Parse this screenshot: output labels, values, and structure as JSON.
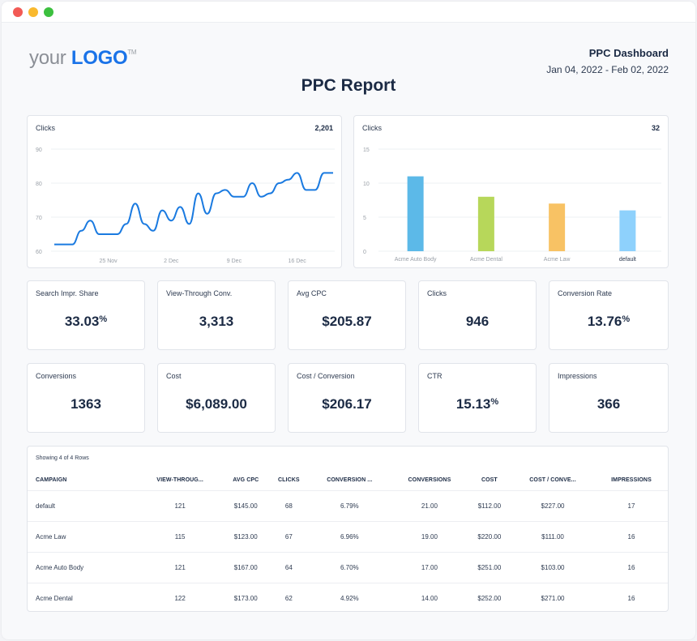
{
  "window": {
    "controls": [
      "close",
      "minimize",
      "maximize"
    ]
  },
  "logo": {
    "prefix": "your",
    "brand": "LOGO",
    "tm": "TM"
  },
  "header": {
    "dashboard_name": "PPC Dashboard",
    "date_range": "Jan 04, 2022 - Feb 02, 2022",
    "report_title": "PPC Report"
  },
  "line_card": {
    "title": "Clicks",
    "total": "2,201"
  },
  "bar_card": {
    "title": "Clicks",
    "total": "32"
  },
  "colors": {
    "line": "#1a7ae0",
    "bars": [
      "#5cb9e8",
      "#b7d75a",
      "#f8c264",
      "#8ed1fc"
    ],
    "grid": "#eef0f3",
    "axis_text": "#9aa0a8"
  },
  "chart_data": [
    {
      "type": "line",
      "title": "Clicks",
      "total": "2,201",
      "xlabel": "",
      "ylabel": "",
      "ylim": [
        60,
        90
      ],
      "yticks": [
        60,
        70,
        80,
        90
      ],
      "xtick_labels": [
        "25 Nov",
        "2 Dec",
        "9 Dec",
        "16 Dec"
      ],
      "xtick_index": [
        6,
        13,
        20,
        27
      ],
      "grid": true,
      "series": [
        {
          "name": "Clicks",
          "values": [
            62,
            62,
            62,
            66,
            69,
            65,
            65,
            65,
            68,
            74,
            68,
            66,
            72,
            69,
            73,
            68,
            77,
            71,
            77,
            78,
            76,
            76,
            80,
            76,
            77,
            80,
            81,
            83,
            78,
            78,
            83,
            83
          ]
        }
      ]
    },
    {
      "type": "bar",
      "title": "Clicks",
      "total": "32",
      "categories": [
        "Acme Auto Body",
        "Acme Dental",
        "Acme Law",
        "default"
      ],
      "values": [
        11,
        8,
        7,
        6
      ],
      "ylim": [
        0,
        15
      ],
      "yticks": [
        0,
        5,
        10,
        15
      ],
      "grid": true,
      "xlabel": "",
      "ylabel": ""
    }
  ],
  "kpis": [
    {
      "label": "Search Impr. Share",
      "value": "33.03",
      "suffix": "%"
    },
    {
      "label": "View-Through Conv.",
      "value": "3,313",
      "suffix": ""
    },
    {
      "label": "Avg CPC",
      "value": "$205.87",
      "suffix": ""
    },
    {
      "label": "Clicks",
      "value": "946",
      "suffix": ""
    },
    {
      "label": "Conversion Rate",
      "value": "13.76",
      "suffix": "%"
    },
    {
      "label": "Conversions",
      "value": "1363",
      "suffix": ""
    },
    {
      "label": "Cost",
      "value": "$6,089.00",
      "suffix": ""
    },
    {
      "label": "Cost / Conversion",
      "value": "$206.17",
      "suffix": ""
    },
    {
      "label": "CTR",
      "value": "15.13",
      "suffix": "%"
    },
    {
      "label": "Impressions",
      "value": "366",
      "suffix": ""
    }
  ],
  "table": {
    "showing": "Showing 4 of 4 Rows",
    "columns": [
      "CAMPAIGN",
      "VIEW-THROUG...",
      "AVG CPC",
      "CLICKS",
      "CONVERSION ...",
      "CONVERSIONS",
      "COST",
      "COST / CONVE...",
      "IMPRESSIONS"
    ],
    "rows": [
      [
        "default",
        "121",
        "$145.00",
        "68",
        "6.79%",
        "21.00",
        "$112.00",
        "$227.00",
        "17"
      ],
      [
        "Acme Law",
        "115",
        "$123.00",
        "67",
        "6.96%",
        "19.00",
        "$220.00",
        "$111.00",
        "16"
      ],
      [
        "Acme Auto Body",
        "121",
        "$167.00",
        "64",
        "6.70%",
        "17.00",
        "$251.00",
        "$103.00",
        "16"
      ],
      [
        "Acme Dental",
        "122",
        "$173.00",
        "62",
        "4.92%",
        "14.00",
        "$252.00",
        "$271.00",
        "16"
      ]
    ]
  }
}
